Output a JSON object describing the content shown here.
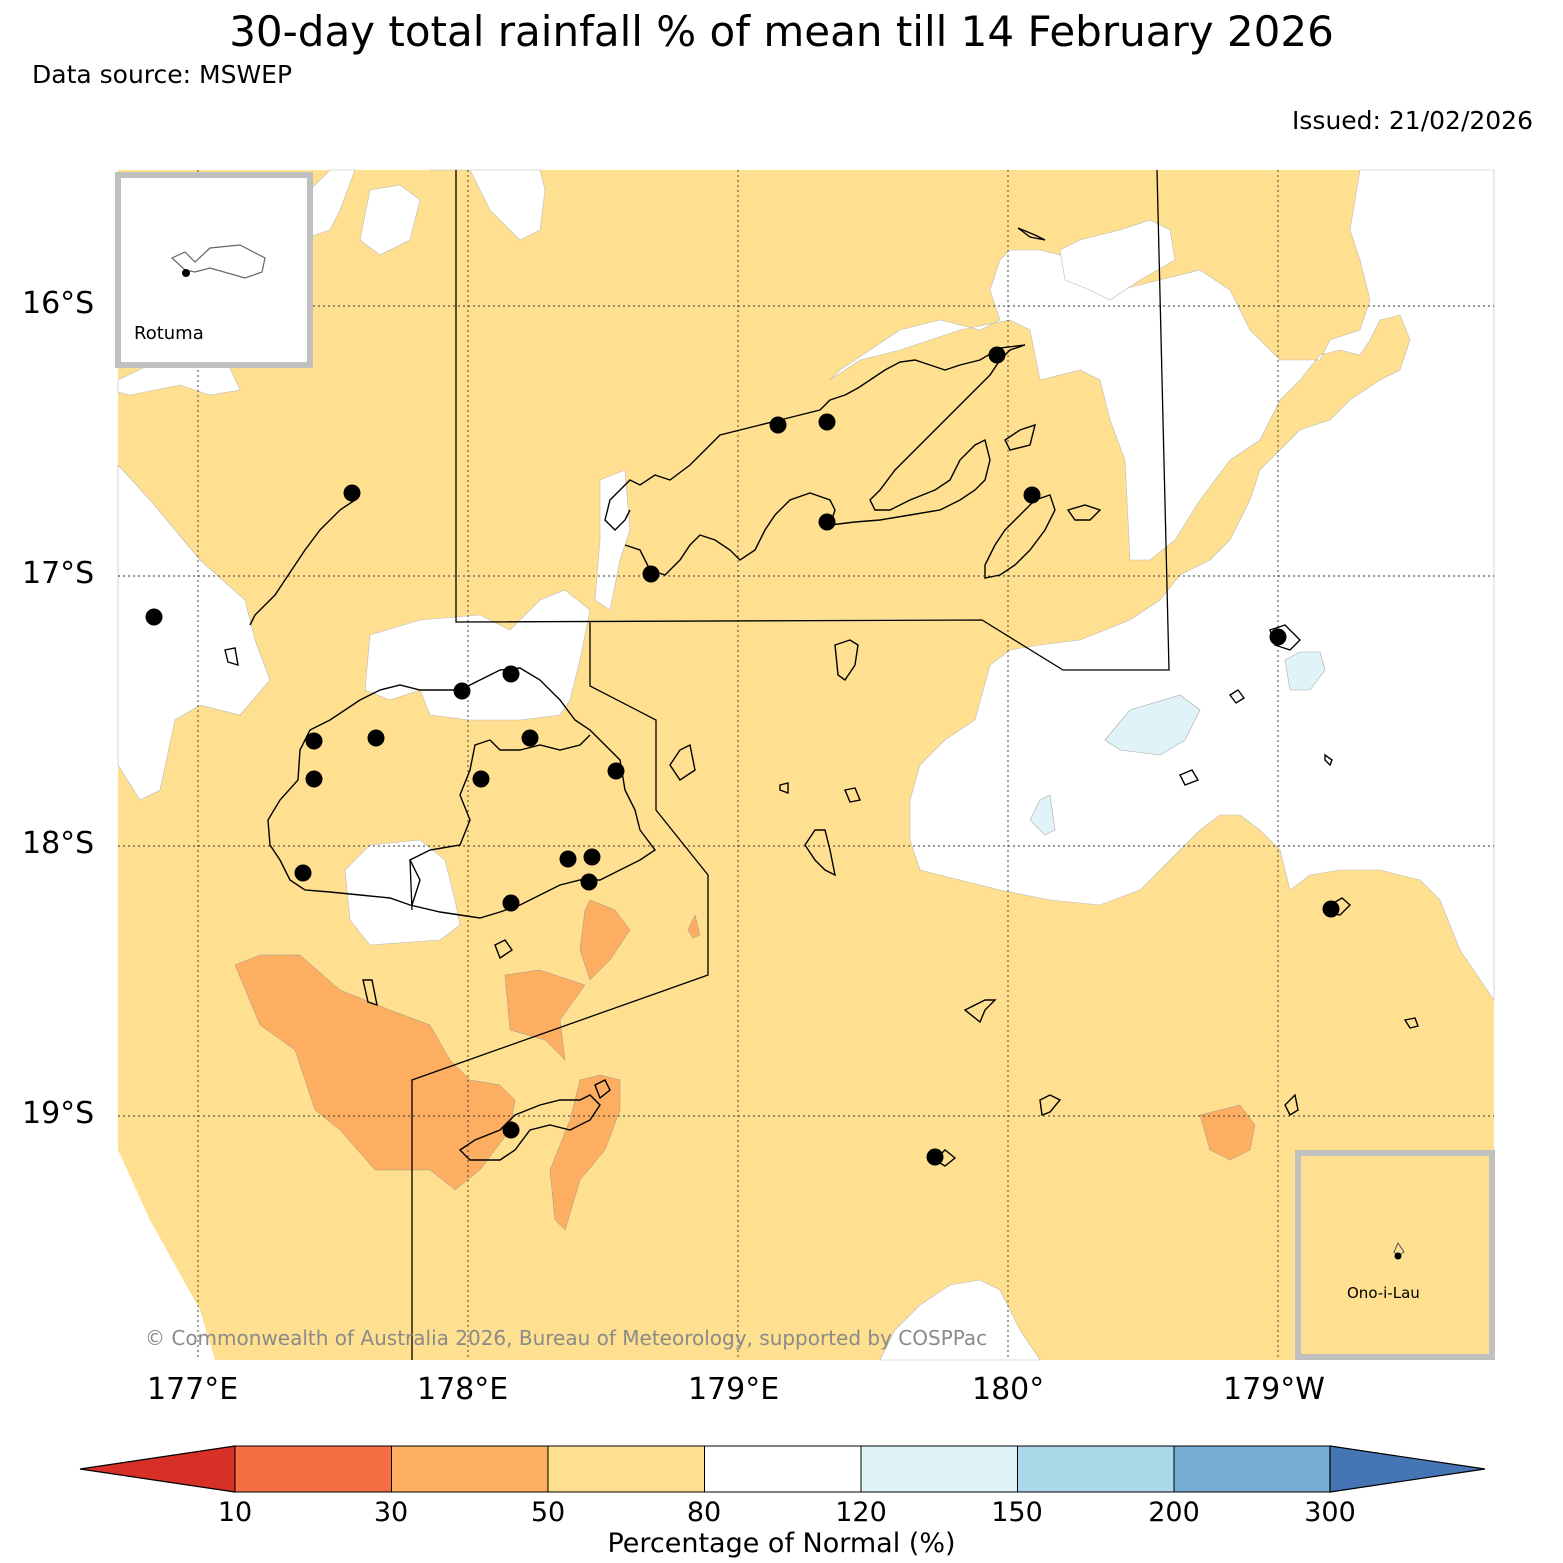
{
  "title": "30-day total rainfall % of mean till 14 February 2026",
  "data_source": "Data source: MSWEP",
  "issued": "Issued: 21/02/2026",
  "latitude_labels": [
    "16°S",
    "17°S",
    "18°S",
    "19°S"
  ],
  "longitude_labels": [
    "177°E",
    "178°E",
    "179°E",
    "180°",
    "179°W"
  ],
  "copyright": "© Commonwealth of Australia 2026, Bureau of Meteorology, supported by COSPPac",
  "insets": {
    "top_left": "Rotuma",
    "bottom_right": "Ono-i-Lau"
  },
  "colorbar": {
    "title": "Percentage of Normal (%)",
    "ticks": [
      "10",
      "30",
      "50",
      "80",
      "120",
      "150",
      "200",
      "300"
    ],
    "colors": [
      "#d73027",
      "#f46d43",
      "#fdae61",
      "#fee090",
      "#ffffff",
      "#e0f3f8",
      "#abd9e9",
      "#74add1",
      "#4575b4"
    ]
  },
  "map_colors": {
    "below": "#fdae61",
    "near_below": "#fee090",
    "normal": "#ffffff",
    "above": "#e0f3f8"
  }
}
